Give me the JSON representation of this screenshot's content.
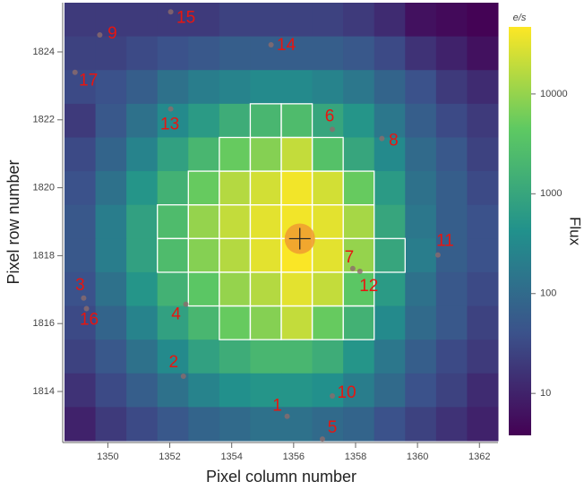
{
  "chart_data": {
    "type": "heatmap",
    "x_label": "Pixel column number",
    "y_label": "Pixel row number",
    "xlim": [
      1348.6,
      1362.6
    ],
    "ylim": [
      1812.55,
      1825.45
    ],
    "xticks": [
      1350,
      1352,
      1354,
      1356,
      1358,
      1360,
      1362
    ],
    "yticks": [
      1814,
      1816,
      1818,
      1820,
      1822,
      1824
    ],
    "colormap": "viridis",
    "log_color": true,
    "colorbar_title": "e/s",
    "colorbar_label": "Flux",
    "clim": [
      3.8,
      47000
    ],
    "cticks": [
      10,
      100,
      1000,
      10000
    ],
    "z": [
      [
        20,
        20,
        20,
        20,
        20,
        25,
        25,
        25,
        25,
        20,
        13,
        6,
        5,
        4
      ],
      [
        25,
        25,
        32,
        40,
        50,
        63,
        63,
        63,
        63,
        50,
        32,
        16,
        10,
        6
      ],
      [
        32,
        40,
        63,
        130,
        200,
        250,
        320,
        320,
        250,
        160,
        80,
        40,
        20,
        13
      ],
      [
        20,
        50,
        130,
        320,
        630,
        1300,
        2000,
        2500,
        1000,
        500,
        160,
        63,
        32,
        20
      ],
      [
        32,
        80,
        250,
        800,
        2000,
        5000,
        8000,
        20000,
        3200,
        1000,
        320,
        100,
        50,
        25
      ],
      [
        40,
        130,
        500,
        1600,
        5000,
        16000,
        25000,
        40000,
        25000,
        5000,
        630,
        130,
        63,
        32
      ],
      [
        50,
        200,
        800,
        2500,
        10000,
        20000,
        32000,
        40000,
        32000,
        13000,
        1000,
        160,
        63,
        40
      ],
      [
        50,
        200,
        800,
        2500,
        8000,
        16000,
        32000,
        45000,
        32000,
        10000,
        1000,
        200,
        63,
        40
      ],
      [
        40,
        130,
        500,
        1600,
        4000,
        10000,
        16000,
        32000,
        20000,
        4000,
        630,
        130,
        50,
        32
      ],
      [
        32,
        80,
        250,
        800,
        2000,
        5000,
        8000,
        20000,
        5000,
        1600,
        320,
        100,
        50,
        25
      ],
      [
        25,
        50,
        130,
        320,
        800,
        1300,
        2000,
        2000,
        1300,
        500,
        160,
        63,
        32,
        20
      ],
      [
        16,
        32,
        63,
        130,
        250,
        400,
        500,
        500,
        400,
        200,
        100,
        40,
        25,
        13
      ],
      [
        10,
        20,
        32,
        50,
        80,
        100,
        130,
        130,
        100,
        80,
        40,
        25,
        16,
        10
      ]
    ],
    "aperture": [
      [
        0,
        0,
        0,
        0,
        0,
        0,
        0,
        0,
        0,
        0,
        0,
        0,
        0,
        0
      ],
      [
        0,
        0,
        0,
        0,
        0,
        0,
        0,
        0,
        0,
        0,
        0,
        0,
        0,
        0
      ],
      [
        0,
        0,
        0,
        0,
        0,
        0,
        0,
        0,
        0,
        0,
        0,
        0,
        0,
        0
      ],
      [
        0,
        0,
        0,
        0,
        0,
        0,
        1,
        1,
        0,
        0,
        0,
        0,
        0,
        0
      ],
      [
        0,
        0,
        0,
        0,
        0,
        1,
        1,
        1,
        1,
        0,
        0,
        0,
        0,
        0
      ],
      [
        0,
        0,
        0,
        0,
        1,
        1,
        1,
        1,
        1,
        1,
        0,
        0,
        0,
        0
      ],
      [
        0,
        0,
        0,
        1,
        1,
        1,
        1,
        1,
        1,
        1,
        0,
        0,
        0,
        0
      ],
      [
        0,
        0,
        0,
        1,
        1,
        1,
        1,
        1,
        1,
        1,
        1,
        0,
        0,
        0
      ],
      [
        0,
        0,
        0,
        0,
        1,
        1,
        1,
        1,
        1,
        1,
        0,
        0,
        0,
        0
      ],
      [
        0,
        0,
        0,
        0,
        0,
        1,
        1,
        1,
        1,
        1,
        0,
        0,
        0,
        0
      ],
      [
        0,
        0,
        0,
        0,
        0,
        0,
        0,
        0,
        0,
        0,
        0,
        0,
        0,
        0
      ],
      [
        0,
        0,
        0,
        0,
        0,
        0,
        0,
        0,
        0,
        0,
        0,
        0,
        0,
        0
      ],
      [
        0,
        0,
        0,
        0,
        0,
        0,
        0,
        0,
        0,
        0,
        0,
        0,
        0,
        0
      ]
    ],
    "target": {
      "x": 1356.2,
      "y": 1818.5,
      "color": "#f0a030"
    },
    "star_color": "#8c6c6c",
    "label_color": "#e8150f",
    "stars": [
      {
        "label": "1",
        "x": 1355.79,
        "y": 1813.27
      },
      {
        "label": "2",
        "x": 1352.44,
        "y": 1814.45
      },
      {
        "label": "3",
        "x": 1349.22,
        "y": 1816.75
      },
      {
        "label": "4",
        "x": 1352.52,
        "y": 1816.57
      },
      {
        "label": "5",
        "x": 1356.93,
        "y": 1812.6
      },
      {
        "label": "6",
        "x": 1357.25,
        "y": 1821.72
      },
      {
        "label": "7",
        "x": 1357.91,
        "y": 1817.62
      },
      {
        "label": "8",
        "x": 1358.85,
        "y": 1821.45
      },
      {
        "label": "9",
        "x": 1349.74,
        "y": 1824.5
      },
      {
        "label": "10",
        "x": 1357.25,
        "y": 1813.87
      },
      {
        "label": "11",
        "x": 1360.66,
        "y": 1818.02
      },
      {
        "label": "12",
        "x": 1358.14,
        "y": 1817.54
      },
      {
        "label": "13",
        "x": 1352.03,
        "y": 1822.32
      },
      {
        "label": "14",
        "x": 1355.27,
        "y": 1824.21
      },
      {
        "label": "15",
        "x": 1352.03,
        "y": 1825.18
      },
      {
        "label": "16",
        "x": 1349.31,
        "y": 1816.44
      },
      {
        "label": "17",
        "x": 1348.94,
        "y": 1823.4
      }
    ]
  }
}
